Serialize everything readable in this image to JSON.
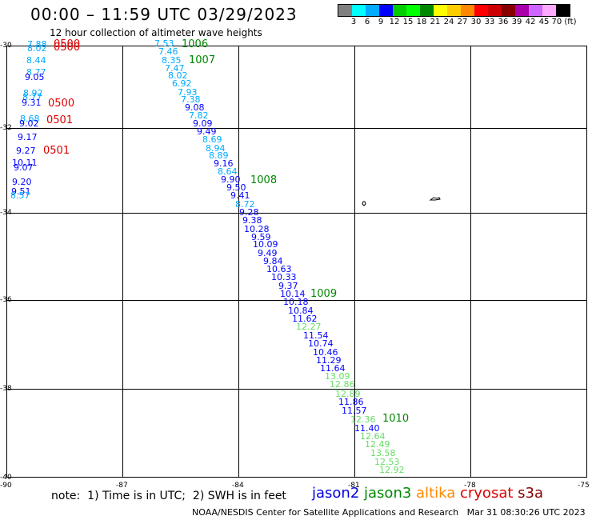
{
  "title": "00:00 – 11:59 UTC 03/29/2023",
  "subtitle": "12 hour collection of altimeter wave heights",
  "legend": {
    "colors": [
      "#808080",
      "#00ffff",
      "#00aaff",
      "#0000ff",
      "#00cc00",
      "#00ff00",
      "#008800",
      "#ffff00",
      "#ffcc00",
      "#ff8800",
      "#ff0000",
      "#cc0000",
      "#880000",
      "#aa00aa",
      "#cc66ff",
      "#ffaaff",
      "#000000"
    ],
    "labels": [
      "3",
      "6",
      "9",
      "12",
      "15",
      "18",
      "21",
      "24",
      "27",
      "30",
      "33",
      "36",
      "39",
      "42",
      "45",
      "70 (ft)"
    ]
  },
  "axes": {
    "y_labels": [
      "-30",
      "-32",
      "-34",
      "-36",
      "-38",
      "-40"
    ],
    "x_labels": [
      "-90",
      "-87",
      "-84",
      "-81",
      "-78",
      "-75"
    ]
  },
  "points": [
    {
      "v": "7.88",
      "c": "#00aaff"
    },
    {
      "v": "8.02",
      "c": "#00aaff"
    },
    {
      "v": "8.44",
      "c": "#00aaff"
    },
    {
      "v": "8.77",
      "c": "#00aaff"
    },
    {
      "v": "9.05",
      "c": "#0000ff"
    },
    {
      "v": "8.92",
      "c": "#00aaff"
    },
    {
      "v": "8.77",
      "c": "#00aaff"
    },
    {
      "v": "9.31",
      "c": "#0000ff"
    },
    {
      "v": "8.68",
      "c": "#00aaff"
    },
    {
      "v": "9.02",
      "c": "#0000ff"
    },
    {
      "v": "9.17",
      "c": "#0000ff"
    },
    {
      "v": "9.27",
      "c": "#0000ff"
    },
    {
      "v": "10.11",
      "c": "#0000ff"
    },
    {
      "v": "9.07",
      "c": "#0000ff"
    },
    {
      "v": "9.20",
      "c": "#0000ff"
    },
    {
      "v": "9.51",
      "c": "#0000ff"
    },
    {
      "v": "8.57",
      "c": "#00aaff"
    },
    {
      "v": "7.53",
      "c": "#00aaff"
    },
    {
      "v": "7.46",
      "c": "#00aaff"
    },
    {
      "v": "8.35",
      "c": "#00aaff"
    },
    {
      "v": "7.47",
      "c": "#00aaff"
    },
    {
      "v": "8.02",
      "c": "#00aaff"
    },
    {
      "v": "6.92",
      "c": "#00aaff"
    },
    {
      "v": "7.93",
      "c": "#00aaff"
    },
    {
      "v": "7.38",
      "c": "#00aaff"
    },
    {
      "v": "9.08",
      "c": "#0000ff"
    },
    {
      "v": "7.82",
      "c": "#00aaff"
    },
    {
      "v": "9.09",
      "c": "#0000ff"
    },
    {
      "v": "9.49",
      "c": "#0000ff"
    },
    {
      "v": "8.69",
      "c": "#00aaff"
    },
    {
      "v": "8.94",
      "c": "#00aaff"
    },
    {
      "v": "8.89",
      "c": "#00aaff"
    },
    {
      "v": "9.16",
      "c": "#0000ff"
    },
    {
      "v": "8.64",
      "c": "#00aaff"
    },
    {
      "v": "9.90",
      "c": "#0000ff"
    },
    {
      "v": "9.50",
      "c": "#0000ff"
    },
    {
      "v": "9.41",
      "c": "#0000ff"
    },
    {
      "v": "8.72",
      "c": "#00aaff"
    },
    {
      "v": "9.28",
      "c": "#0000ff"
    },
    {
      "v": "9.38",
      "c": "#0000ff"
    },
    {
      "v": "10.28",
      "c": "#0000ff"
    },
    {
      "v": "9.59",
      "c": "#0000ff"
    },
    {
      "v": "10.09",
      "c": "#0000ff"
    },
    {
      "v": "9.49",
      "c": "#0000ff"
    },
    {
      "v": "9.84",
      "c": "#0000ff"
    },
    {
      "v": "10.63",
      "c": "#0000ff"
    },
    {
      "v": "10.33",
      "c": "#0000ff"
    },
    {
      "v": "9.37",
      "c": "#0000ff"
    },
    {
      "v": "10.14",
      "c": "#0000ff"
    },
    {
      "v": "10.18",
      "c": "#0000ff"
    },
    {
      "v": "10.84",
      "c": "#0000ff"
    },
    {
      "v": "11.62",
      "c": "#0000ff"
    },
    {
      "v": "12.27",
      "c": "#66dd66"
    },
    {
      "v": "11.54",
      "c": "#0000ff"
    },
    {
      "v": "10.74",
      "c": "#0000ff"
    },
    {
      "v": "10.46",
      "c": "#0000ff"
    },
    {
      "v": "11.29",
      "c": "#0000ff"
    },
    {
      "v": "11.64",
      "c": "#0000ff"
    },
    {
      "v": "13.09",
      "c": "#66dd66"
    },
    {
      "v": "12.86",
      "c": "#66dd66"
    },
    {
      "v": "12.89",
      "c": "#66dd66"
    },
    {
      "v": "11.86",
      "c": "#0000ff"
    },
    {
      "v": "11.57",
      "c": "#0000ff"
    },
    {
      "v": "12.36",
      "c": "#66dd66"
    },
    {
      "v": "11.40",
      "c": "#0000ff"
    },
    {
      "v": "12.64",
      "c": "#66dd66"
    },
    {
      "v": "12.49",
      "c": "#66dd66"
    },
    {
      "v": "13.58",
      "c": "#66dd66"
    },
    {
      "v": "12.53",
      "c": "#66dd66"
    },
    {
      "v": "12.92",
      "c": "#66dd66"
    }
  ],
  "cycles": [
    {
      "v": "0500",
      "c": "#dd0000"
    },
    {
      "v": "0500",
      "c": "#dd0000"
    },
    {
      "v": "0500",
      "c": "#dd0000"
    },
    {
      "v": "0501",
      "c": "#dd0000"
    },
    {
      "v": "0501",
      "c": "#dd0000"
    },
    {
      "v": "1006",
      "c": "#008800"
    },
    {
      "v": "1007",
      "c": "#008800"
    },
    {
      "v": "1008",
      "c": "#008800"
    },
    {
      "v": "1009",
      "c": "#008800"
    },
    {
      "v": "1010",
      "c": "#008800"
    }
  ],
  "note": "note:  1) Time is in UTC;  2) SWH is in feet",
  "satellites": [
    {
      "name": "jason2",
      "color": "#0000dd"
    },
    {
      "name": "jason3",
      "color": "#008800"
    },
    {
      "name": "altika",
      "color": "#ff8800"
    },
    {
      "name": "cryosat",
      "color": "#dd0000"
    },
    {
      "name": "s3a",
      "color": "#880000"
    }
  ],
  "credit": "NOAA/NESDIS Center for Satellite Applications and Research   Mar 31 08:30:26 UTC 2023"
}
